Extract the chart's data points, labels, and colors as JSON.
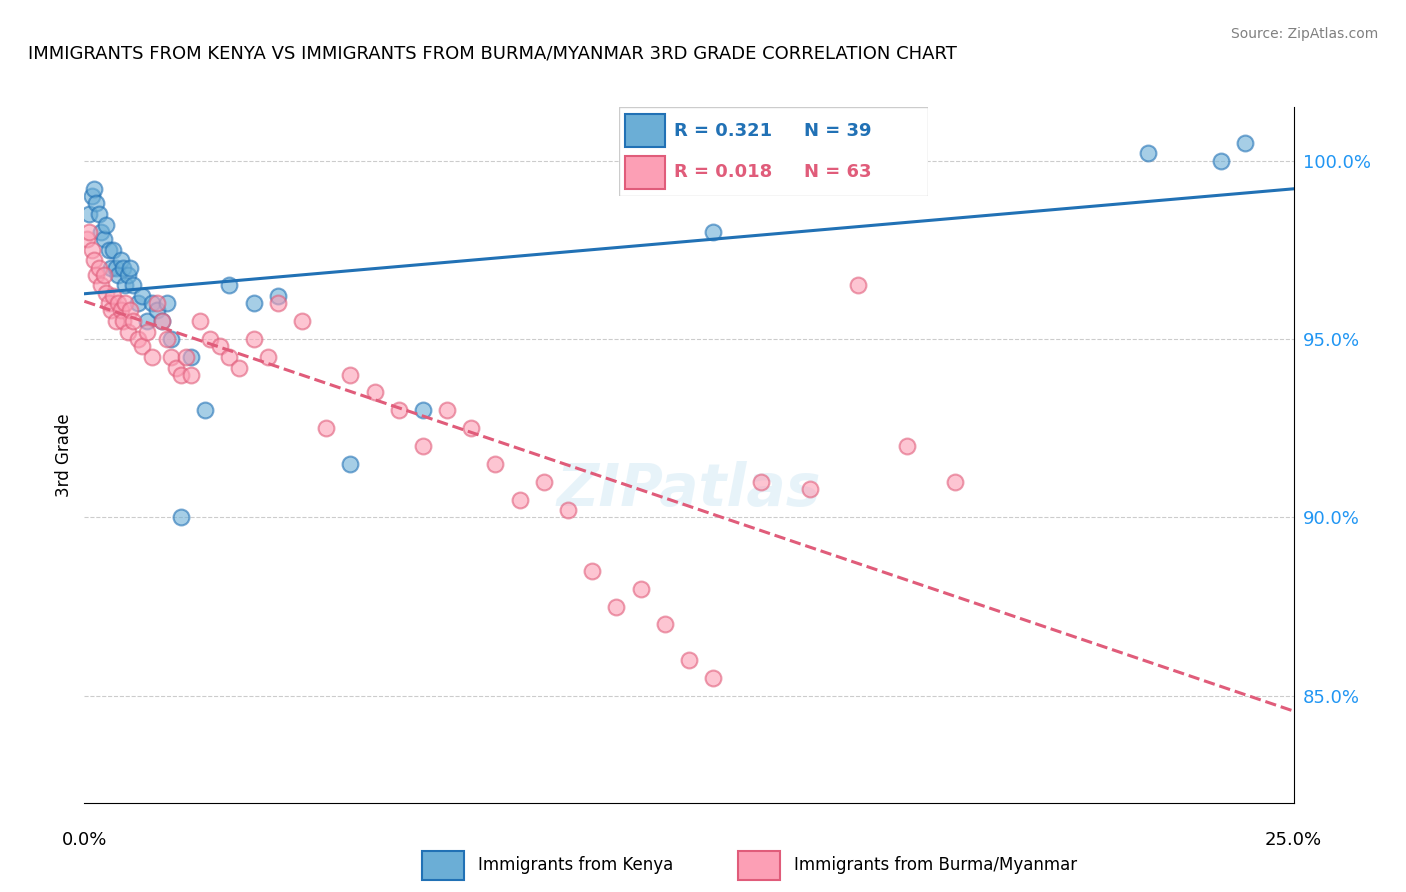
{
  "title": "IMMIGRANTS FROM KENYA VS IMMIGRANTS FROM BURMA/MYANMAR 3RD GRADE CORRELATION CHART",
  "source": "Source: ZipAtlas.com",
  "ylabel": "3rd Grade",
  "xlim": [
    0.0,
    25.0
  ],
  "ylim": [
    82.0,
    101.5
  ],
  "yticks": [
    85.0,
    90.0,
    95.0,
    100.0
  ],
  "ytick_labels": [
    "85.0%",
    "90.0%",
    "95.0%",
    "100.0%"
  ],
  "kenya_R": 0.321,
  "kenya_N": 39,
  "burma_R": 0.018,
  "burma_N": 63,
  "kenya_color": "#6baed6",
  "burma_color": "#fc9fb5",
  "kenya_line_color": "#2171b5",
  "burma_line_color": "#e05c7a",
  "grid_color": "#cccccc",
  "kenya_x": [
    0.1,
    0.15,
    0.2,
    0.25,
    0.3,
    0.35,
    0.4,
    0.45,
    0.5,
    0.55,
    0.6,
    0.65,
    0.7,
    0.75,
    0.8,
    0.85,
    0.9,
    0.95,
    1.0,
    1.1,
    1.2,
    1.3,
    1.4,
    1.5,
    1.6,
    1.7,
    1.8,
    2.0,
    2.2,
    2.5,
    3.0,
    3.5,
    4.0,
    5.5,
    7.0,
    13.0,
    22.0,
    23.5,
    24.0
  ],
  "kenya_y": [
    98.5,
    99.0,
    99.2,
    98.8,
    98.5,
    98.0,
    97.8,
    98.2,
    97.5,
    97.0,
    97.5,
    97.0,
    96.8,
    97.2,
    97.0,
    96.5,
    96.8,
    97.0,
    96.5,
    96.0,
    96.2,
    95.5,
    96.0,
    95.8,
    95.5,
    96.0,
    95.0,
    90.0,
    94.5,
    93.0,
    96.5,
    96.0,
    96.2,
    91.5,
    93.0,
    98.0,
    100.2,
    100.0,
    100.5
  ],
  "burma_x": [
    0.05,
    0.1,
    0.15,
    0.2,
    0.25,
    0.3,
    0.35,
    0.4,
    0.45,
    0.5,
    0.55,
    0.6,
    0.65,
    0.7,
    0.75,
    0.8,
    0.85,
    0.9,
    0.95,
    1.0,
    1.1,
    1.2,
    1.3,
    1.4,
    1.5,
    1.6,
    1.7,
    1.8,
    1.9,
    2.0,
    2.1,
    2.2,
    2.4,
    2.6,
    2.8,
    3.0,
    3.2,
    3.5,
    3.8,
    4.0,
    4.5,
    5.0,
    5.5,
    6.0,
    6.5,
    7.0,
    7.5,
    8.0,
    8.5,
    9.0,
    9.5,
    10.0,
    10.5,
    11.0,
    11.5,
    12.0,
    12.5,
    13.0,
    14.0,
    15.0,
    16.0,
    17.0,
    18.0
  ],
  "burma_y": [
    97.8,
    98.0,
    97.5,
    97.2,
    96.8,
    97.0,
    96.5,
    96.8,
    96.3,
    96.0,
    95.8,
    96.2,
    95.5,
    96.0,
    95.8,
    95.5,
    96.0,
    95.2,
    95.8,
    95.5,
    95.0,
    94.8,
    95.2,
    94.5,
    96.0,
    95.5,
    95.0,
    94.5,
    94.2,
    94.0,
    94.5,
    94.0,
    95.5,
    95.0,
    94.8,
    94.5,
    94.2,
    95.0,
    94.5,
    96.0,
    95.5,
    92.5,
    94.0,
    93.5,
    93.0,
    92.0,
    93.0,
    92.5,
    91.5,
    90.5,
    91.0,
    90.2,
    88.5,
    87.5,
    88.0,
    87.0,
    86.0,
    85.5,
    91.0,
    90.8,
    96.5,
    92.0,
    91.0
  ]
}
